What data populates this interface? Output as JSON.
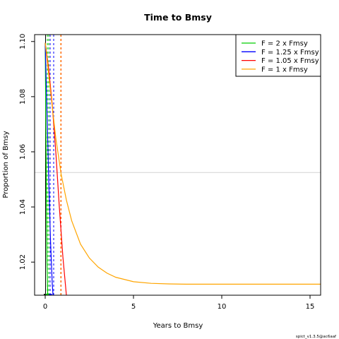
{
  "chart_data": {
    "type": "line",
    "title": "Time to Bmsy",
    "xlabel": "Years to Bmsy",
    "ylabel": "Proportion of Bmsy",
    "xlim": [
      -0.6,
      15.6
    ],
    "ylim": [
      1.008,
      1.1025
    ],
    "xticks": [
      0,
      5,
      10,
      15
    ],
    "yticks": [
      1.02,
      1.04,
      1.06,
      1.08,
      1.1
    ],
    "ytick_labels": [
      "1.02",
      "1.04",
      "1.06",
      "1.08",
      "1.10"
    ],
    "grid": false,
    "reference_line": {
      "y": 1.0525,
      "color": "#d3d3d3"
    },
    "legend_position": "top-right",
    "series": [
      {
        "name": "F = 2 x Fmsy",
        "color": "#00cd00",
        "x": [
          0.0,
          0.05,
          0.1,
          0.15,
          0.2
        ],
        "y": [
          1.0995,
          1.06,
          1.02,
          1.006,
          1.0
        ]
      },
      {
        "name": "F = 1.25 x Fmsy",
        "color": "#0000ff",
        "x": [
          0.0,
          0.1,
          0.2,
          0.3,
          0.4,
          0.5
        ],
        "y": [
          1.0995,
          1.075,
          1.05,
          1.028,
          1.012,
          1.003
        ]
      },
      {
        "name": "F = 1.05 x Fmsy",
        "color": "#ff0000",
        "x": [
          0.0,
          0.2,
          0.4,
          0.6,
          0.8,
          1.0,
          1.2,
          1.3
        ],
        "y": [
          1.0995,
          1.09,
          1.077,
          1.06,
          1.04,
          1.022,
          1.008,
          1.0
        ]
      },
      {
        "name": "F = 1 x Fmsy",
        "color": "#ffa500",
        "x": [
          0.0,
          0.3,
          0.6,
          0.9,
          1.2,
          1.5,
          2.0,
          2.5,
          3.0,
          3.5,
          4.0,
          5.0,
          6.0,
          7.0,
          8.0,
          10.0,
          12.0,
          14.0,
          15.6
        ],
        "y": [
          1.0995,
          1.082,
          1.065,
          1.052,
          1.0425,
          1.035,
          1.0265,
          1.0215,
          1.0182,
          1.016,
          1.0145,
          1.0129,
          1.0123,
          1.0121,
          1.012,
          1.012,
          1.012,
          1.012,
          1.012
        ]
      }
    ],
    "vertical_markers": [
      {
        "x": 0.02,
        "color": "#000000",
        "style": "solid"
      },
      {
        "x": 0.12,
        "color": "#00cd00",
        "style": "dashed"
      },
      {
        "x": 0.2,
        "color": "#00cd00",
        "style": "dashed"
      },
      {
        "x": 0.28,
        "color": "#0000ff",
        "style": "dashed"
      },
      {
        "x": 0.48,
        "color": "#0000ff",
        "style": "dashed"
      },
      {
        "x": 0.9,
        "color": "#ff0000",
        "style": "dashed"
      },
      {
        "x": 0.88,
        "color": "#ffa500",
        "style": "dashed"
      }
    ],
    "bottom_markers": [
      {
        "x": 0.0,
        "color": "#000000"
      },
      {
        "x": 0.1,
        "color": "#00cd00"
      },
      {
        "x": 0.3,
        "color": "#0000ff"
      }
    ]
  },
  "footnote": "spict_v1.3.5@ac6aaf"
}
